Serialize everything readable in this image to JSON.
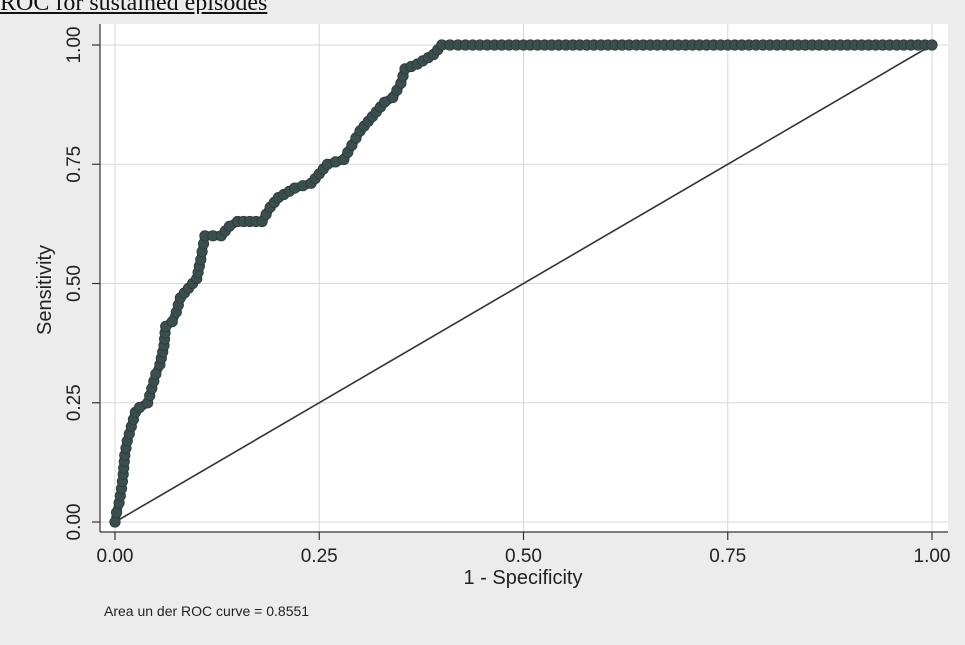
{
  "document": {
    "heading": "ROC for sustained episodes"
  },
  "chart_data": {
    "type": "line",
    "title": "",
    "xlabel": "1 - Specificity",
    "ylabel": "Sensitivity",
    "xlim": [
      0,
      1
    ],
    "ylim": [
      0,
      1
    ],
    "x_ticks": [
      "0.00",
      "0.25",
      "0.50",
      "0.75",
      "1.00"
    ],
    "y_ticks": [
      "0.00",
      "0.25",
      "0.50",
      "0.75",
      "1.00"
    ],
    "grid": true,
    "note": "Area un der ROC curve = 0.8551",
    "colors": {
      "curve": "#3a4f4d",
      "reference": "#333333",
      "grid": "#d7d7d7",
      "plot_bg": "#ffffff"
    },
    "series": [
      {
        "x": [
          0.0,
          0.002,
          0.005,
          0.008,
          0.01,
          0.012,
          0.015,
          0.02,
          0.025,
          0.03,
          0.04,
          0.045,
          0.05,
          0.055,
          0.06,
          0.062,
          0.07,
          0.075,
          0.08,
          0.09,
          0.1,
          0.105,
          0.11,
          0.13,
          0.14,
          0.15,
          0.18,
          0.19,
          0.2,
          0.22,
          0.24,
          0.25,
          0.26,
          0.28,
          0.29,
          0.3,
          0.31,
          0.32,
          0.33,
          0.34,
          0.35,
          0.355,
          0.37,
          0.39,
          0.4,
          0.42,
          0.5,
          0.75,
          1.0
        ],
        "y": [
          0.0,
          0.02,
          0.04,
          0.07,
          0.1,
          0.14,
          0.17,
          0.2,
          0.23,
          0.24,
          0.25,
          0.28,
          0.31,
          0.33,
          0.37,
          0.41,
          0.42,
          0.44,
          0.47,
          0.49,
          0.51,
          0.55,
          0.6,
          0.6,
          0.62,
          0.63,
          0.63,
          0.66,
          0.68,
          0.7,
          0.71,
          0.73,
          0.75,
          0.76,
          0.79,
          0.82,
          0.84,
          0.86,
          0.88,
          0.89,
          0.92,
          0.95,
          0.96,
          0.98,
          1.0,
          1.0,
          1.0,
          1.0,
          1.0
        ]
      },
      {
        "x": [
          0,
          1
        ],
        "y": [
          0,
          1
        ]
      }
    ]
  }
}
